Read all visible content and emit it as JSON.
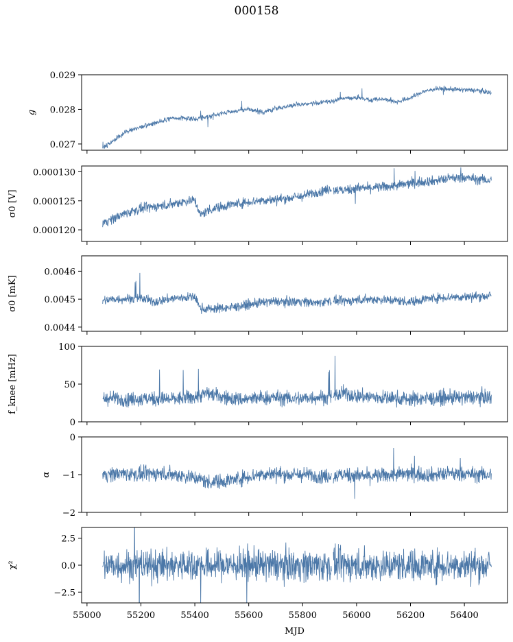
{
  "figure": {
    "title": "000158",
    "xlabel": "MJD",
    "series_color": "#4c78a8"
  },
  "chart_data": [
    {
      "type": "line",
      "ylabel": "g",
      "xlim": [
        54980,
        56560
      ],
      "ylim": [
        0.02682,
        0.029
      ],
      "yticks": [
        0.027,
        0.028,
        0.029
      ],
      "ytick_labels": [
        "0.027",
        "0.028",
        "0.029"
      ],
      "x": [
        55058,
        55100,
        55150,
        55200,
        55250,
        55300,
        55350,
        55400,
        55450,
        55500,
        55550,
        55600,
        55650,
        55700,
        55750,
        55800,
        55850,
        55900,
        55950,
        56000,
        56050,
        56100,
        56150,
        56200,
        56250,
        56300,
        56350,
        56400,
        56450,
        56500
      ],
      "y": [
        0.02688,
        0.0271,
        0.02738,
        0.02748,
        0.0276,
        0.02772,
        0.02775,
        0.02772,
        0.0278,
        0.02788,
        0.02795,
        0.028,
        0.02792,
        0.02802,
        0.0281,
        0.02815,
        0.02818,
        0.02822,
        0.02832,
        0.02835,
        0.02828,
        0.0283,
        0.02822,
        0.02833,
        0.02852,
        0.0286,
        0.02858,
        0.02856,
        0.02855,
        0.02848
      ],
      "noise": 5e-05
    },
    {
      "type": "line",
      "ylabel": "σ0 [V]",
      "xlim": [
        54980,
        56560
      ],
      "ylim": [
        0.000118,
        0.000131
      ],
      "yticks": [
        0.00012,
        0.000125,
        0.00013
      ],
      "ytick_labels": [
        "0.000120",
        "0.000125",
        "0.000130"
      ],
      "x": [
        55058,
        55100,
        55150,
        55200,
        55250,
        55300,
        55350,
        55400,
        55420,
        55450,
        55500,
        55550,
        55600,
        55650,
        55700,
        55750,
        55800,
        55850,
        55900,
        55950,
        56000,
        56050,
        56100,
        56150,
        56200,
        56250,
        56300,
        56350,
        56400,
        56450,
        56500
      ],
      "y": [
        0.0001212,
        0.000122,
        0.000123,
        0.0001236,
        0.000124,
        0.0001243,
        0.0001248,
        0.0001252,
        0.0001225,
        0.0001234,
        0.000124,
        0.0001245,
        0.0001248,
        0.0001251,
        0.0001252,
        0.0001255,
        0.0001258,
        0.0001265,
        0.000127,
        0.0001268,
        0.0001272,
        0.0001272,
        0.0001274,
        0.0001276,
        0.000128,
        0.0001283,
        0.0001285,
        0.0001289,
        0.000129,
        0.0001287,
        0.0001285
      ],
      "noise": 6e-07
    },
    {
      "type": "line",
      "ylabel": "σ0 [mK]",
      "xlim": [
        54980,
        56560
      ],
      "ylim": [
        0.004385,
        0.004655
      ],
      "yticks": [
        0.0044,
        0.0045,
        0.0046
      ],
      "ytick_labels": [
        "0.0044",
        "0.0045",
        "0.0046"
      ],
      "x": [
        55058,
        55100,
        55150,
        55200,
        55250,
        55300,
        55350,
        55400,
        55420,
        55450,
        55500,
        55550,
        55600,
        55650,
        55700,
        55750,
        55800,
        55850,
        55900,
        55950,
        56000,
        56050,
        56100,
        56150,
        56200,
        56250,
        56300,
        56350,
        56400,
        56450,
        56500
      ],
      "y": [
        0.004495,
        0.0045,
        0.004502,
        0.004503,
        0.00449,
        0.0045,
        0.004505,
        0.004508,
        0.004468,
        0.004465,
        0.004468,
        0.004472,
        0.00448,
        0.004488,
        0.004492,
        0.00449,
        0.004493,
        0.004485,
        0.004495,
        0.004492,
        0.004497,
        0.0045,
        0.004498,
        0.004495,
        0.00449,
        0.0045,
        0.004505,
        0.004508,
        0.004508,
        0.00451,
        0.004512
      ],
      "noise": 1.2e-05
    },
    {
      "type": "line",
      "ylabel": "f_knee [mHz]",
      "xlim": [
        54980,
        56560
      ],
      "ylim": [
        0,
        100
      ],
      "yticks": [
        0,
        50,
        100
      ],
      "ytick_labels": [
        "0",
        "50",
        "100"
      ],
      "x": [
        55058,
        55100,
        55150,
        55200,
        55250,
        55300,
        55350,
        55400,
        55450,
        55500,
        55550,
        55600,
        55650,
        55700,
        55750,
        55800,
        55850,
        55900,
        55950,
        56000,
        56050,
        56100,
        56150,
        56200,
        56250,
        56300,
        56350,
        56400,
        56450,
        56500
      ],
      "y": [
        31,
        31,
        30,
        30,
        31,
        30,
        31,
        33,
        38,
        33,
        30,
        30,
        32,
        32,
        31,
        31,
        33,
        32,
        38,
        34,
        33,
        32,
        31,
        30,
        31,
        31,
        32,
        32,
        33,
        33
      ],
      "noise": 7
    },
    {
      "type": "line",
      "ylabel": "α",
      "xlim": [
        54980,
        56560
      ],
      "ylim": [
        -2,
        0
      ],
      "yticks": [
        -2,
        -1,
        0
      ],
      "ytick_labels": [
        "−2",
        "−1",
        "0"
      ],
      "x": [
        55058,
        55100,
        55150,
        55200,
        55250,
        55300,
        55350,
        55400,
        55450,
        55500,
        55550,
        55600,
        55650,
        55700,
        55750,
        55800,
        55850,
        55900,
        55950,
        56000,
        56050,
        56100,
        56150,
        56200,
        56250,
        56300,
        56350,
        56400,
        56450,
        56500
      ],
      "y": [
        -1.0,
        -0.98,
        -0.97,
        -1.0,
        -0.97,
        -0.98,
        -1.02,
        -1.08,
        -1.2,
        -1.18,
        -1.12,
        -1.05,
        -0.98,
        -0.98,
        -1.0,
        -1.0,
        -1.02,
        -1.05,
        -1.0,
        -1.02,
        -1.05,
        -1.02,
        -1.0,
        -0.98,
        -1.0,
        -1.0,
        -0.98,
        -0.98,
        -1.0,
        -1.0
      ],
      "noise": 0.14
    },
    {
      "type": "line",
      "ylabel": "χ²",
      "xlim": [
        54980,
        56560
      ],
      "ylim": [
        -3.5,
        3.5
      ],
      "yticks": [
        -2.5,
        0.0,
        2.5
      ],
      "ytick_labels": [
        "−2.5",
        "0.0",
        "2.5"
      ],
      "x": [
        55058,
        55500,
        56000,
        56500
      ],
      "y": [
        0.0,
        0.0,
        0.0,
        0.0
      ],
      "noise": 1.05
    }
  ],
  "x_axis": {
    "ticks": [
      55000,
      55200,
      55400,
      55600,
      55800,
      56000,
      56200,
      56400
    ],
    "tick_labels": [
      "55000",
      "55200",
      "55400",
      "55600",
      "55800",
      "56000",
      "56200",
      "56400"
    ],
    "gap_at": 55910
  }
}
